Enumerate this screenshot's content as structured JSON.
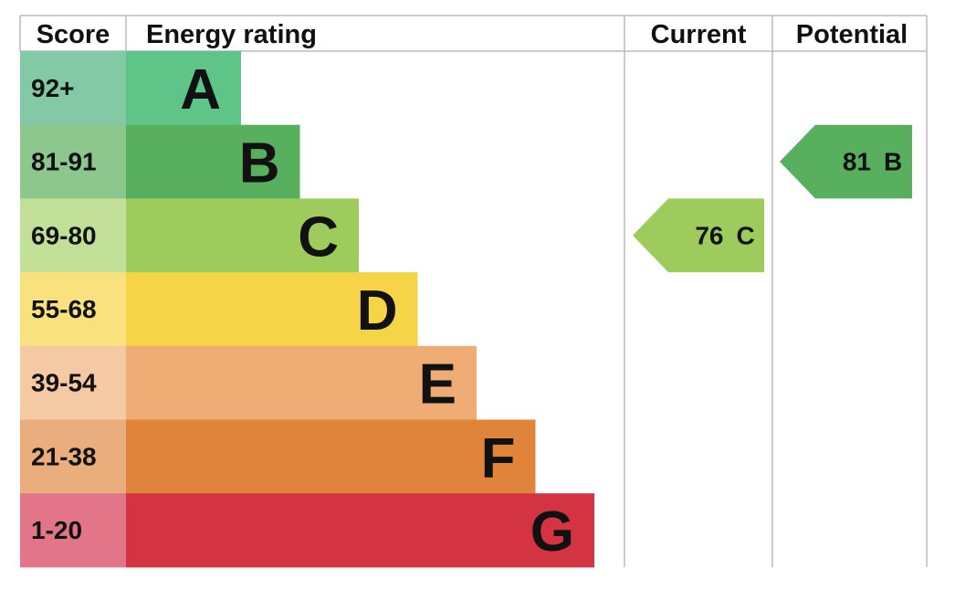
{
  "headers": {
    "score": "Score",
    "rating": "Energy rating",
    "current": "Current",
    "potential": "Potential"
  },
  "bands": [
    {
      "score": "92+",
      "letter": "A",
      "color": "#5ec488",
      "score_color": "#84c9a5"
    },
    {
      "score": "81-91",
      "letter": "B",
      "color": "#58b05e",
      "score_color": "#8cc78d"
    },
    {
      "score": "69-80",
      "letter": "C",
      "color": "#9dcb5c",
      "score_color": "#c2df98"
    },
    {
      "score": "55-68",
      "letter": "D",
      "color": "#f5d448",
      "score_color": "#f9e27e"
    },
    {
      "score": "39-54",
      "letter": "E",
      "color": "#efac74",
      "score_color": "#f4c9a3"
    },
    {
      "score": "21-38",
      "letter": "F",
      "color": "#e0843c",
      "score_color": "#e9ae7c"
    },
    {
      "score": "1-20",
      "letter": "G",
      "color": "#d43441",
      "score_color": "#e27688"
    }
  ],
  "current": {
    "score": 76,
    "letter": "C"
  },
  "potential": {
    "score": 81,
    "letter": "B"
  }
}
